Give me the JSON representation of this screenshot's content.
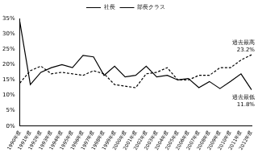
{
  "chart_data": {
    "type": "line",
    "categories": [
      "1990年度",
      "1991年度",
      "1992年度",
      "1993年度",
      "1994年度",
      "1995年度",
      "1996年度",
      "1997年度",
      "1998年度",
      "1999年度",
      "2000年度",
      "2001年度",
      "2002年度",
      "2003年度",
      "2004年度",
      "2005年度",
      "2006年度",
      "2007年度",
      "2008年度",
      "2009年度",
      "2010年度",
      "2011年度",
      "2012年度"
    ],
    "series": [
      {
        "name": "社長",
        "color": "#000000",
        "line_style": "solid",
        "marker": "none",
        "values": [
          34,
          13.5,
          17.5,
          19,
          20,
          19,
          23,
          22.5,
          16.5,
          19.5,
          16,
          16.5,
          19.5,
          16,
          16.5,
          15,
          15.5,
          12.5,
          14.5,
          12.2,
          14.5,
          17,
          11.8
        ]
      },
      {
        "name": "部長クラス",
        "color": "#000000",
        "line_style": "dashed",
        "marker": "none",
        "values": [
          14,
          18,
          19.5,
          17,
          17.5,
          17,
          16.5,
          18,
          17,
          13.5,
          13,
          12.5,
          17,
          17.5,
          19,
          15,
          15,
          16.5,
          16.5,
          19,
          19,
          21.5,
          23.2
        ]
      }
    ],
    "ylim": [
      0,
      35
    ],
    "yticks": [
      {
        "value": 0,
        "label": "0%"
      },
      {
        "value": 5,
        "label": "5%"
      },
      {
        "value": 10,
        "label": "10%"
      },
      {
        "value": 15,
        "label": "15%"
      },
      {
        "value": 20,
        "label": "20%"
      },
      {
        "value": 25,
        "label": "25%"
      },
      {
        "value": 30,
        "label": "30%"
      },
      {
        "value": 35,
        "label": "35%"
      }
    ],
    "grid": false,
    "legend": "top",
    "annotations": [
      {
        "text": [
          "過去最高",
          "23.2%"
        ],
        "series": "部長クラス",
        "x": "2012年度"
      },
      {
        "text": [
          "過去最低",
          "11.8%"
        ],
        "series": "社長",
        "x": "2012年度"
      }
    ]
  }
}
